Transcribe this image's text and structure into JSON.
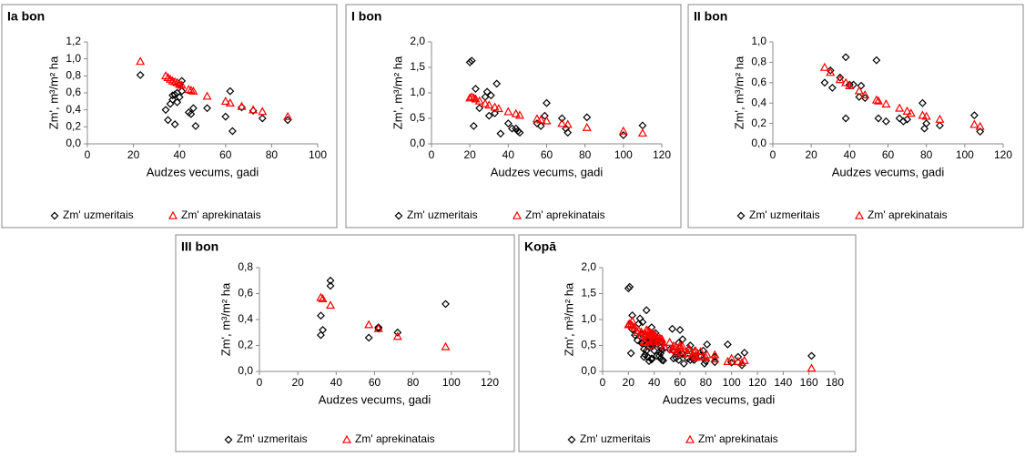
{
  "chart_data": [
    {
      "type": "scatter",
      "title": "Ia bon",
      "x_label": "Audzes vecums, gadi",
      "y_label": "Zm', m³/m² ha",
      "xlim": [
        0,
        100
      ],
      "xticks": [
        0,
        20,
        40,
        60,
        80,
        100
      ],
      "ylim": [
        0,
        1.2
      ],
      "yticks": [
        {
          "value": 0,
          "label": "0,0"
        },
        {
          "value": 0.2,
          "label": "0,2"
        },
        {
          "value": 0.4,
          "label": "0,4"
        },
        {
          "value": 0.6,
          "label": "0,6"
        },
        {
          "value": 0.8,
          "label": "0,8"
        },
        {
          "value": 1.0,
          "label": "1,0"
        },
        {
          "value": 1.2,
          "label": "1,2"
        }
      ],
      "series": [
        {
          "name": "Zm' uzmeritais",
          "color": "#000000",
          "marker": "diamond",
          "x": [
            23,
            34,
            35,
            36,
            37,
            37,
            38,
            38,
            39,
            39,
            40,
            40,
            41,
            41,
            44,
            45,
            46,
            47,
            52,
            60,
            62,
            63,
            67,
            72,
            76,
            87
          ],
          "values": [
            0.81,
            0.4,
            0.28,
            0.47,
            0.52,
            0.57,
            0.58,
            0.23,
            0.49,
            0.6,
            0.7,
            0.55,
            0.74,
            0.62,
            0.37,
            0.35,
            0.42,
            0.21,
            0.42,
            0.32,
            0.62,
            0.15,
            0.43,
            0.39,
            0.3,
            0.28
          ]
        },
        {
          "name": "Zm' aprekinatais",
          "color": "#ff0000",
          "marker": "triangle",
          "x": [
            23,
            34,
            35,
            36,
            37,
            38,
            39,
            40,
            41,
            44,
            45,
            46,
            52,
            60,
            62,
            67,
            72,
            76,
            87
          ],
          "values": [
            0.97,
            0.8,
            0.78,
            0.76,
            0.74,
            0.73,
            0.72,
            0.7,
            0.69,
            0.64,
            0.63,
            0.62,
            0.56,
            0.5,
            0.48,
            0.44,
            0.4,
            0.38,
            0.32
          ]
        }
      ]
    },
    {
      "type": "scatter",
      "title": "I bon",
      "x_label": "Audzes vecums, gadi",
      "y_label": "Zm', m³/m² ha",
      "xlim": [
        0,
        120
      ],
      "xticks": [
        0,
        20,
        40,
        60,
        80,
        100,
        120
      ],
      "ylim": [
        0,
        2
      ],
      "yticks": [
        {
          "value": 0,
          "label": "0,0"
        },
        {
          "value": 0.5,
          "label": "0,5"
        },
        {
          "value": 1.0,
          "label": "1,0"
        },
        {
          "value": 1.5,
          "label": "1,5"
        },
        {
          "value": 2.0,
          "label": "2,0"
        }
      ],
      "series": [
        {
          "name": "Zm' uzmeritais",
          "color": "#000000",
          "marker": "diamond",
          "x": [
            20,
            21,
            22,
            23,
            25,
            28,
            29,
            30,
            31,
            33,
            34,
            36,
            40,
            42,
            44,
            45,
            46,
            55,
            57,
            59,
            60,
            68,
            70,
            71,
            81,
            100,
            110
          ],
          "values": [
            1.6,
            1.63,
            0.35,
            1.08,
            0.7,
            0.92,
            1.02,
            0.55,
            0.95,
            0.6,
            1.18,
            0.2,
            0.4,
            0.3,
            0.3,
            0.25,
            0.22,
            0.4,
            0.35,
            0.55,
            0.8,
            0.5,
            0.3,
            0.22,
            0.52,
            0.17,
            0.36
          ]
        },
        {
          "name": "Zm' aprekinatais",
          "color": "#ff0000",
          "marker": "triangle",
          "x": [
            20,
            21,
            22,
            23,
            25,
            28,
            30,
            33,
            35,
            40,
            44,
            46,
            55,
            57,
            60,
            68,
            71,
            81,
            100,
            110
          ],
          "values": [
            0.9,
            0.92,
            0.9,
            0.88,
            0.84,
            0.79,
            0.76,
            0.72,
            0.69,
            0.63,
            0.59,
            0.56,
            0.49,
            0.47,
            0.45,
            0.4,
            0.38,
            0.32,
            0.25,
            0.21
          ]
        }
      ]
    },
    {
      "type": "scatter",
      "title": "II bon",
      "x_label": "Audzes vecums, gadi",
      "y_label": "Zm', m³/m² ha",
      "xlim": [
        0,
        120
      ],
      "xticks": [
        0,
        20,
        40,
        60,
        80,
        100,
        120
      ],
      "ylim": [
        0,
        1
      ],
      "yticks": [
        {
          "value": 0,
          "label": "0,0"
        },
        {
          "value": 0.2,
          "label": "0,2"
        },
        {
          "value": 0.4,
          "label": "0,4"
        },
        {
          "value": 0.6,
          "label": "0,6"
        },
        {
          "value": 0.8,
          "label": "0,8"
        },
        {
          "value": 1.0,
          "label": "1,0"
        }
      ],
      "series": [
        {
          "name": "Zm' uzmeritais",
          "color": "#000000",
          "marker": "diamond",
          "x": [
            27,
            30,
            31,
            35,
            38,
            38,
            40,
            42,
            45,
            46,
            48,
            54,
            55,
            59,
            66,
            68,
            70,
            78,
            79,
            80,
            87,
            105,
            108
          ],
          "values": [
            0.6,
            0.72,
            0.55,
            0.65,
            0.85,
            0.25,
            0.58,
            0.58,
            0.46,
            0.57,
            0.45,
            0.82,
            0.25,
            0.22,
            0.25,
            0.22,
            0.24,
            0.4,
            0.15,
            0.2,
            0.18,
            0.28,
            0.12
          ]
        },
        {
          "name": "Zm' aprekinatais",
          "color": "#ff0000",
          "marker": "triangle",
          "x": [
            27,
            30,
            35,
            38,
            40,
            45,
            48,
            54,
            55,
            59,
            66,
            70,
            72,
            78,
            80,
            87,
            105,
            108
          ],
          "values": [
            0.75,
            0.7,
            0.63,
            0.6,
            0.57,
            0.52,
            0.48,
            0.43,
            0.42,
            0.39,
            0.35,
            0.32,
            0.3,
            0.28,
            0.27,
            0.24,
            0.19,
            0.17
          ]
        }
      ]
    },
    {
      "type": "scatter",
      "title": "III bon",
      "x_label": "Audzes vecums, gadi",
      "y_label": "Zm', m³/m² ha",
      "xlim": [
        0,
        120
      ],
      "xticks": [
        0,
        20,
        40,
        60,
        80,
        100,
        120
      ],
      "ylim": [
        0,
        0.8
      ],
      "yticks": [
        {
          "value": 0,
          "label": "0,0"
        },
        {
          "value": 0.2,
          "label": "0,2"
        },
        {
          "value": 0.4,
          "label": "0,4"
        },
        {
          "value": 0.6,
          "label": "0,6"
        },
        {
          "value": 0.8,
          "label": "0,8"
        }
      ],
      "series": [
        {
          "name": "Zm' uzmeritais",
          "color": "#000000",
          "marker": "diamond",
          "x": [
            32,
            32,
            33,
            37,
            37,
            57,
            62,
            62,
            72,
            97
          ],
          "values": [
            0.28,
            0.43,
            0.32,
            0.7,
            0.66,
            0.26,
            0.34,
            0.33,
            0.3,
            0.52
          ]
        },
        {
          "name": "Zm' aprekinatais",
          "color": "#ff0000",
          "marker": "triangle",
          "x": [
            32,
            33,
            37,
            57,
            62,
            72,
            97
          ],
          "values": [
            0.57,
            0.56,
            0.51,
            0.36,
            0.33,
            0.27,
            0.19
          ]
        }
      ]
    },
    {
      "type": "scatter",
      "title": "Kopā",
      "x_label": "Audzes vecums, gadi",
      "y_label": "Zm', m³/m² ha",
      "xlim": [
        0,
        180
      ],
      "xticks": [
        0,
        20,
        40,
        60,
        80,
        100,
        120,
        140,
        160,
        180
      ],
      "ylim": [
        0,
        2
      ],
      "yticks": [
        {
          "value": 0,
          "label": "0,0"
        },
        {
          "value": 0.5,
          "label": "0,5"
        },
        {
          "value": 1.0,
          "label": "1,0"
        },
        {
          "value": 1.5,
          "label": "1,5"
        },
        {
          "value": 2.0,
          "label": "2,0"
        }
      ],
      "series": [
        {
          "name": "Zm' uzmeritais",
          "color": "#000000",
          "marker": "diamond",
          "x": [
            23,
            34,
            35,
            36,
            37,
            37,
            38,
            38,
            39,
            39,
            40,
            40,
            41,
            41,
            44,
            45,
            46,
            47,
            52,
            60,
            62,
            63,
            67,
            72,
            76,
            87,
            20,
            21,
            22,
            23,
            25,
            28,
            29,
            30,
            31,
            33,
            34,
            36,
            40,
            42,
            44,
            45,
            46,
            55,
            57,
            59,
            60,
            68,
            70,
            71,
            81,
            100,
            110,
            27,
            30,
            31,
            35,
            38,
            38,
            40,
            42,
            45,
            46,
            48,
            54,
            55,
            59,
            66,
            68,
            70,
            78,
            79,
            80,
            87,
            105,
            108,
            32,
            32,
            33,
            37,
            37,
            57,
            62,
            62,
            72,
            97,
            162
          ],
          "values": [
            0.81,
            0.4,
            0.28,
            0.47,
            0.52,
            0.57,
            0.58,
            0.23,
            0.49,
            0.6,
            0.7,
            0.55,
            0.74,
            0.62,
            0.37,
            0.35,
            0.42,
            0.21,
            0.42,
            0.32,
            0.62,
            0.15,
            0.43,
            0.39,
            0.3,
            0.28,
            1.6,
            1.63,
            0.35,
            1.08,
            0.7,
            0.92,
            1.02,
            0.55,
            0.95,
            0.6,
            1.18,
            0.2,
            0.4,
            0.3,
            0.3,
            0.25,
            0.22,
            0.4,
            0.35,
            0.55,
            0.8,
            0.5,
            0.3,
            0.22,
            0.52,
            0.17,
            0.36,
            0.6,
            0.72,
            0.55,
            0.65,
            0.85,
            0.25,
            0.58,
            0.58,
            0.46,
            0.57,
            0.45,
            0.82,
            0.25,
            0.22,
            0.25,
            0.22,
            0.24,
            0.4,
            0.15,
            0.2,
            0.18,
            0.28,
            0.12,
            0.28,
            0.43,
            0.32,
            0.7,
            0.66,
            0.26,
            0.34,
            0.33,
            0.3,
            0.52,
            0.3
          ]
        },
        {
          "name": "Zm' aprekinatais",
          "color": "#ff0000",
          "marker": "triangle",
          "x": [
            23,
            34,
            35,
            36,
            37,
            38,
            39,
            40,
            41,
            44,
            45,
            46,
            52,
            60,
            62,
            67,
            72,
            76,
            87,
            20,
            21,
            22,
            23,
            25,
            28,
            30,
            33,
            35,
            40,
            44,
            46,
            55,
            57,
            60,
            68,
            71,
            81,
            100,
            110,
            27,
            30,
            35,
            38,
            40,
            45,
            48,
            54,
            55,
            59,
            66,
            70,
            72,
            78,
            80,
            87,
            105,
            108,
            32,
            33,
            37,
            57,
            62,
            72,
            97,
            162
          ],
          "values": [
            0.97,
            0.8,
            0.78,
            0.76,
            0.74,
            0.73,
            0.72,
            0.7,
            0.69,
            0.64,
            0.63,
            0.62,
            0.56,
            0.5,
            0.48,
            0.44,
            0.4,
            0.38,
            0.32,
            0.9,
            0.92,
            0.9,
            0.88,
            0.84,
            0.79,
            0.76,
            0.72,
            0.69,
            0.63,
            0.59,
            0.56,
            0.49,
            0.47,
            0.45,
            0.4,
            0.38,
            0.32,
            0.25,
            0.21,
            0.75,
            0.7,
            0.63,
            0.6,
            0.57,
            0.52,
            0.48,
            0.43,
            0.42,
            0.39,
            0.35,
            0.32,
            0.3,
            0.28,
            0.27,
            0.24,
            0.19,
            0.17,
            0.57,
            0.56,
            0.51,
            0.36,
            0.33,
            0.27,
            0.19,
            0.06
          ]
        }
      ]
    }
  ]
}
